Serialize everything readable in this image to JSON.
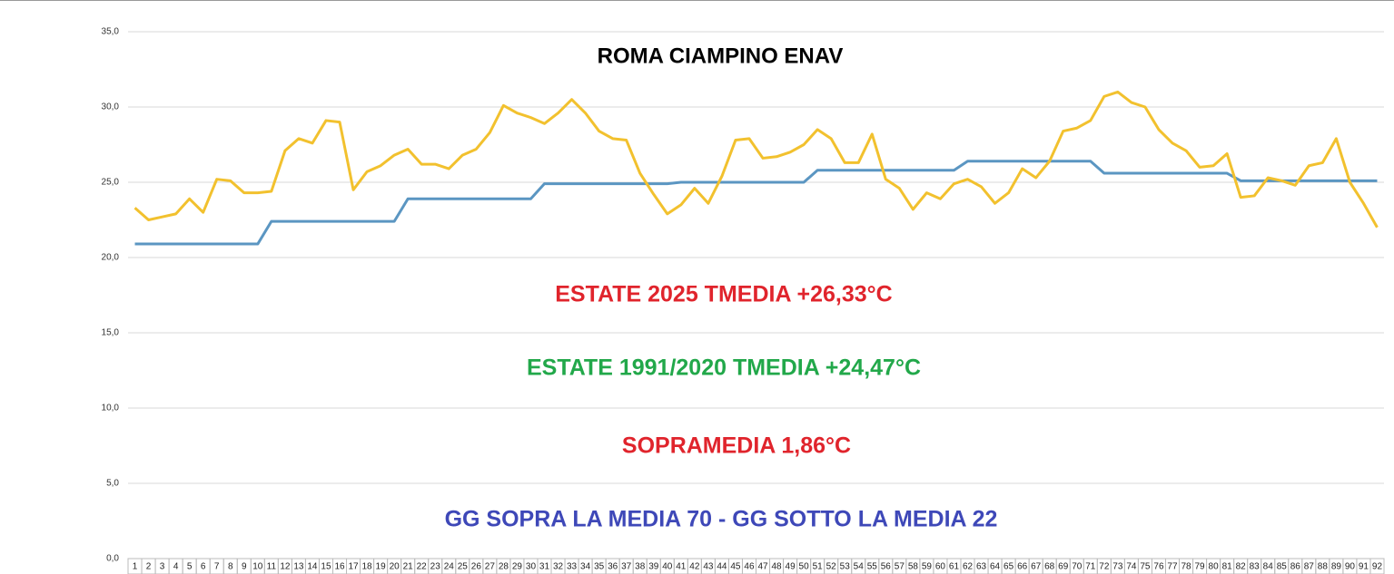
{
  "chart_data": {
    "type": "line",
    "annotations": [
      {
        "text": "ROMA CIAMPINO ENAV",
        "color": "#000000"
      },
      {
        "text": "ESTATE 2025 TMEDIA +26,33°C",
        "color": "#e0242c"
      },
      {
        "text": "ESTATE 1991/2020 TMEDIA +24,47°C",
        "color": "#22a84a"
      },
      {
        "text": "SOPRAMEDIA 1,86°C",
        "color": "#e0242c"
      },
      {
        "text": "GG SOPRA LA MEDIA 70 - GG SOTTO LA MEDIA 22",
        "color": "#3e48b8"
      }
    ],
    "categories": [
      "1",
      "2",
      "3",
      "4",
      "5",
      "6",
      "7",
      "8",
      "9",
      "10",
      "11",
      "12",
      "13",
      "14",
      "15",
      "16",
      "17",
      "18",
      "19",
      "20",
      "21",
      "22",
      "23",
      "24",
      "25",
      "26",
      "27",
      "28",
      "29",
      "30",
      "31",
      "32",
      "33",
      "34",
      "35",
      "36",
      "37",
      "38",
      "39",
      "40",
      "41",
      "42",
      "43",
      "44",
      "45",
      "46",
      "47",
      "48",
      "49",
      "50",
      "51",
      "52",
      "53",
      "54",
      "55",
      "56",
      "57",
      "58",
      "59",
      "60",
      "61",
      "62",
      "63",
      "64",
      "65",
      "66",
      "67",
      "68",
      "69",
      "70",
      "71",
      "72",
      "73",
      "74",
      "75",
      "76",
      "77",
      "78",
      "79",
      "80",
      "81",
      "82",
      "83",
      "84",
      "85",
      "86",
      "87",
      "88",
      "89",
      "90",
      "91",
      "92"
    ],
    "series": [
      {
        "color": "#f2c12e",
        "values": [
          23.3,
          22.5,
          22.7,
          22.9,
          23.9,
          23.0,
          25.2,
          25.1,
          24.3,
          24.3,
          24.4,
          27.1,
          27.9,
          27.6,
          29.1,
          29.0,
          24.5,
          25.7,
          26.1,
          26.8,
          27.2,
          26.2,
          26.2,
          25.9,
          26.8,
          27.2,
          28.3,
          30.1,
          29.6,
          29.3,
          28.9,
          29.6,
          30.5,
          29.6,
          28.4,
          27.9,
          27.8,
          25.6,
          24.2,
          22.9,
          23.5,
          24.6,
          23.6,
          25.4,
          27.8,
          27.9,
          26.6,
          26.7,
          27.0,
          27.5,
          28.5,
          27.9,
          26.3,
          26.3,
          28.2,
          25.2,
          24.6,
          23.2,
          24.3,
          23.9,
          24.9,
          25.2,
          24.7,
          23.6,
          24.3,
          25.9,
          25.3,
          26.4,
          28.4,
          28.6,
          29.1,
          30.7,
          31.0,
          30.3,
          30.0,
          28.5,
          27.6,
          27.1,
          26.0,
          26.1,
          26.9,
          24.0,
          24.1,
          25.3,
          25.1,
          24.8,
          26.1,
          26.3,
          27.9,
          25.0,
          23.6,
          22.0
        ]
      },
      {
        "color": "#5b96c2",
        "values": [
          20.9,
          20.9,
          20.9,
          20.9,
          20.9,
          20.9,
          20.9,
          20.9,
          20.9,
          20.9,
          22.4,
          22.4,
          22.4,
          22.4,
          22.4,
          22.4,
          22.4,
          22.4,
          22.4,
          22.4,
          23.9,
          23.9,
          23.9,
          23.9,
          23.9,
          23.9,
          23.9,
          23.9,
          23.9,
          23.9,
          24.9,
          24.9,
          24.9,
          24.9,
          24.9,
          24.9,
          24.9,
          24.9,
          24.9,
          24.9,
          25.0,
          25.0,
          25.0,
          25.0,
          25.0,
          25.0,
          25.0,
          25.0,
          25.0,
          25.0,
          25.8,
          25.8,
          25.8,
          25.8,
          25.8,
          25.8,
          25.8,
          25.8,
          25.8,
          25.8,
          25.8,
          26.4,
          26.4,
          26.4,
          26.4,
          26.4,
          26.4,
          26.4,
          26.4,
          26.4,
          26.4,
          25.6,
          25.6,
          25.6,
          25.6,
          25.6,
          25.6,
          25.6,
          25.6,
          25.6,
          25.6,
          25.1,
          25.1,
          25.1,
          25.1,
          25.1,
          25.1,
          25.1,
          25.1,
          25.1,
          25.1,
          25.1
        ]
      }
    ],
    "ylim": [
      0,
      35
    ],
    "yticks": [
      {
        "value": 0,
        "label": "0,0"
      },
      {
        "value": 5,
        "label": "5,0"
      },
      {
        "value": 10,
        "label": "10,0"
      },
      {
        "value": 15,
        "label": "15,0"
      },
      {
        "value": 20,
        "label": "20,0"
      },
      {
        "value": 25,
        "label": "25,0"
      },
      {
        "value": 30,
        "label": "30,0"
      },
      {
        "value": 35,
        "label": "35,0"
      }
    ],
    "grid": true
  }
}
